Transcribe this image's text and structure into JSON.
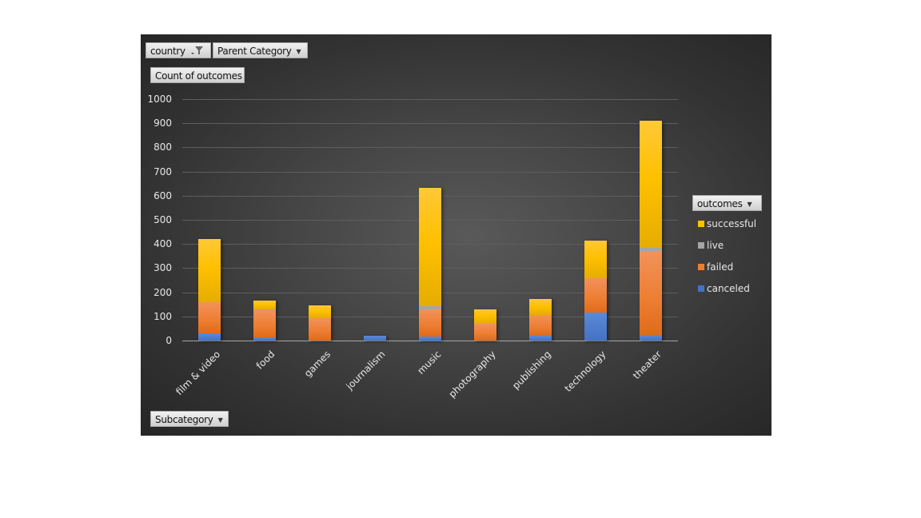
{
  "pivot_fields": {
    "filter_field": "country",
    "filter_icon": "filter-funnel-icon",
    "column_field": "Parent Category",
    "value_field": "Count of outcomes",
    "axis_field": "Subcategory",
    "legend_field": "outcomes",
    "dropdown_icon": "dropdown-arrow-icon"
  },
  "legend": {
    "title": "outcomes",
    "items": [
      {
        "label": "successful",
        "color": "#ffc000"
      },
      {
        "label": "live",
        "color": "#a5a5a5"
      },
      {
        "label": "failed",
        "color": "#ed7d31"
      },
      {
        "label": "canceled",
        "color": "#4472c4"
      }
    ]
  },
  "chart_data": {
    "type": "bar",
    "stacked": true,
    "title": "",
    "xlabel": "Subcategory",
    "ylabel": "Count of outcomes",
    "ylim": [
      0,
      1000
    ],
    "yticks": [
      0,
      100,
      200,
      300,
      400,
      500,
      600,
      700,
      800,
      900,
      1000
    ],
    "grid": true,
    "legend_position": "right",
    "categories": [
      "film & video",
      "food",
      "games",
      "journalism",
      "music",
      "photography",
      "publishing",
      "technology",
      "theater"
    ],
    "series": [
      {
        "name": "canceled",
        "color": "#4472c4",
        "values": [
          30,
          13,
          0,
          20,
          17,
          0,
          20,
          117,
          23
        ]
      },
      {
        "name": "failed",
        "color": "#ed7d31",
        "values": [
          129,
          113,
          93,
          0,
          111,
          70,
          86,
          142,
          348
        ]
      },
      {
        "name": "live",
        "color": "#a5a5a5",
        "values": [
          0,
          4,
          0,
          0,
          15,
          0,
          0,
          0,
          13
        ]
      },
      {
        "name": "successful",
        "color": "#ffc000",
        "values": [
          261,
          36,
          53,
          0,
          489,
          59,
          66,
          155,
          527
        ]
      }
    ]
  }
}
